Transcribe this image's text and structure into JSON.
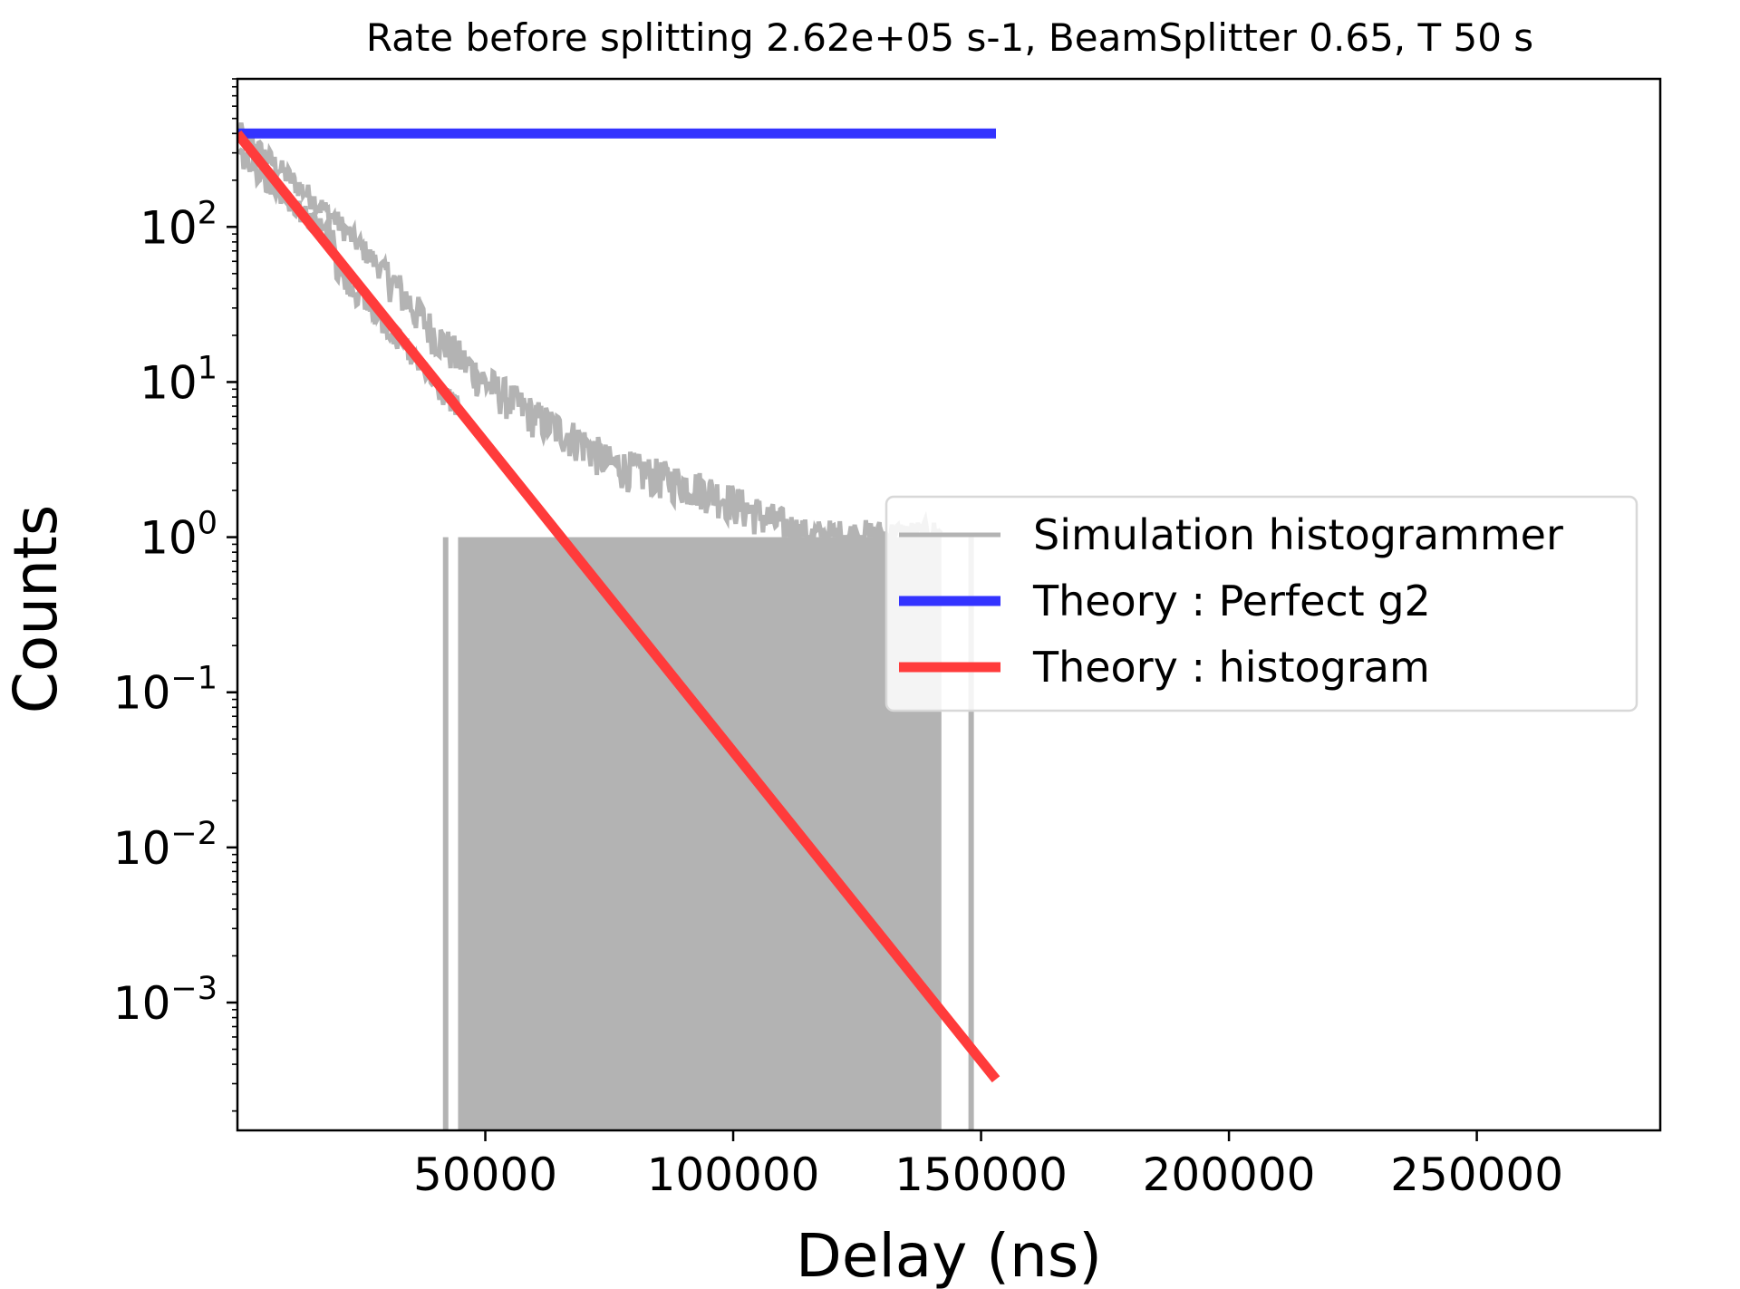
{
  "chart_data": {
    "type": "line",
    "title": "Rate before splitting 2.62e+05 s-1, BeamSplitter 0.65, T 50 s",
    "xlabel": "Delay (ns)",
    "ylabel": "Counts",
    "x_scale": "linear",
    "y_scale": "log",
    "xlim": [
      0,
      287000
    ],
    "ylim": [
      0.00015,
      900
    ],
    "x_ticks": [
      50000,
      100000,
      150000,
      200000,
      250000
    ],
    "x_tick_labels": [
      "50000",
      "100000",
      "150000",
      "200000",
      "250000"
    ],
    "y_ticks": [
      {
        "value": 100,
        "base": "10",
        "exp": "2"
      },
      {
        "value": 10,
        "base": "10",
        "exp": "1"
      },
      {
        "value": 1,
        "base": "10",
        "exp": "0"
      },
      {
        "value": 0.1,
        "base": "10",
        "exp": "−1"
      },
      {
        "value": 0.01,
        "base": "10",
        "exp": "−2"
      },
      {
        "value": 0.001,
        "base": "10",
        "exp": "−3"
      }
    ],
    "grid": false,
    "legend_position": "center-right",
    "series": [
      {
        "name": "Simulation histogrammer",
        "color": "#b3b3b3",
        "kind": "noisy-histogram",
        "envelope": [
          {
            "x": 0,
            "y": 420
          },
          {
            "x": 20000,
            "y": 110
          },
          {
            "x": 30000,
            "y": 50
          },
          {
            "x": 40000,
            "y": 20
          },
          {
            "x": 50000,
            "y": 10
          },
          {
            "x": 60000,
            "y": 6
          },
          {
            "x": 70000,
            "y": 4
          },
          {
            "x": 75000,
            "y": 3
          },
          {
            "x": 95000,
            "y": 2
          },
          {
            "x": 115000,
            "y": 1
          },
          {
            "x": 142000,
            "y": 1
          }
        ],
        "isolated_spikes_x": [
          42000,
          148000
        ]
      },
      {
        "name": "Theory : Perfect g2",
        "color": "#3333ff",
        "x": [
          0,
          153000
        ],
        "y": [
          400,
          400
        ]
      },
      {
        "name": "Theory : histogram",
        "color": "#ff3b3b",
        "x": [
          0,
          153000
        ],
        "y": [
          400,
          0.00032
        ]
      }
    ]
  }
}
